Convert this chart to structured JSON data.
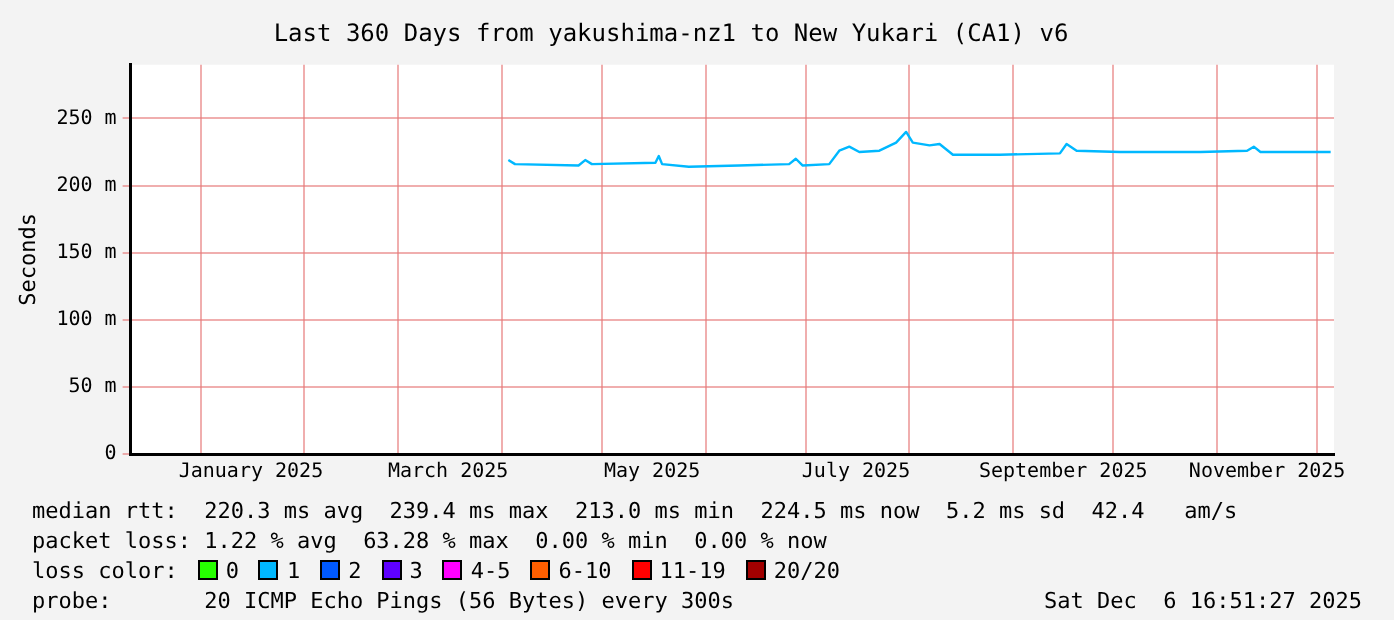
{
  "chart_data": {
    "type": "line",
    "title": "Last 360 Days from yakushima-nz1 to New Yukari (CA1) v6",
    "ylabel": "Seconds",
    "x": [
      "2025-04-03",
      "2025-04-05",
      "2025-04-24",
      "2025-04-26",
      "2025-04-28",
      "2025-05-17",
      "2025-05-18",
      "2025-05-19",
      "2025-05-27",
      "2025-06-11",
      "2025-06-26",
      "2025-06-28",
      "2025-06-30",
      "2025-07-08",
      "2025-07-11",
      "2025-07-14",
      "2025-07-17",
      "2025-07-23",
      "2025-07-28",
      "2025-07-31",
      "2025-08-02",
      "2025-08-07",
      "2025-08-10",
      "2025-08-14",
      "2025-08-28",
      "2025-09-15",
      "2025-09-17",
      "2025-09-20",
      "2025-10-03",
      "2025-10-27",
      "2025-11-10",
      "2025-11-12",
      "2025-11-14",
      "2025-12-05"
    ],
    "series": [
      {
        "color": "#00b8ff",
        "values": [
          219,
          216,
          215,
          219,
          216,
          217,
          222,
          216,
          214,
          215,
          216,
          220,
          215,
          216,
          226,
          229,
          225,
          226,
          232,
          240,
          232,
          230,
          231,
          223,
          223,
          224,
          231,
          226,
          225,
          225,
          226,
          229,
          225,
          225
        ]
      }
    ],
    "xlim": [
      "2024-12-11",
      "2025-12-06"
    ],
    "xticks": [
      {
        "value": "2025-01-01",
        "label": null
      },
      {
        "value": "2025-01-16",
        "label": "January 2025"
      },
      {
        "value": "2025-02-01",
        "label": null
      },
      {
        "value": "2025-03-01",
        "label": null
      },
      {
        "value": "2025-03-16",
        "label": "March 2025"
      },
      {
        "value": "2025-04-01",
        "label": null
      },
      {
        "value": "2025-05-01",
        "label": null
      },
      {
        "value": "2025-05-16",
        "label": "May 2025"
      },
      {
        "value": "2025-06-01",
        "label": null
      },
      {
        "value": "2025-07-01",
        "label": null
      },
      {
        "value": "2025-07-16",
        "label": "July 2025"
      },
      {
        "value": "2025-08-01",
        "label": null
      },
      {
        "value": "2025-09-01",
        "label": null
      },
      {
        "value": "2025-09-16",
        "label": "September 2025"
      },
      {
        "value": "2025-10-01",
        "label": null
      },
      {
        "value": "2025-11-01",
        "label": null
      },
      {
        "value": "2025-11-16",
        "label": "November 2025"
      },
      {
        "value": "2025-12-01",
        "label": null
      }
    ],
    "ylim": [
      0,
      290
    ],
    "yticks": [
      0,
      {
        "value": 50,
        "label": "50 m"
      },
      {
        "value": 100,
        "label": "100 m"
      },
      {
        "value": 150,
        "label": "150 m"
      },
      {
        "value": 200,
        "label": "200 m"
      },
      {
        "value": 250,
        "label": "250 m"
      }
    ],
    "grid": true,
    "legend": false,
    "marker": "none",
    "line_style": "solid",
    "annotations": [
      "median rtt:  220.3 ms avg  239.4 ms max  213.0 ms min  224.5 ms now  5.2 ms sd  42.4   am/s",
      "packet loss: 1.22 % avg  63.28 % max  0.00 % min  0.00 % now",
      "loss color:",
      "0",
      "1",
      "2",
      "3",
      "4-5",
      "6-10",
      "11-19",
      "20/20",
      "probe:       20 ICMP Echo Pings (56 Bytes) every 300s",
      "Sat Dec  6 16:51:27 2025"
    ]
  }
}
